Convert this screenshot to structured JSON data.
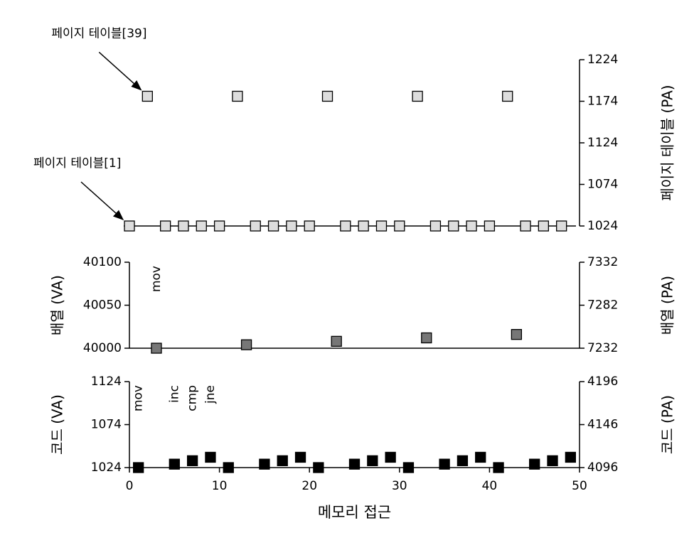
{
  "chart_data": [
    {
      "type": "scatter",
      "axis": "y2",
      "x": [
        0,
        2,
        4,
        6,
        8,
        10,
        12,
        14,
        16,
        18,
        20,
        22,
        24,
        26,
        28,
        30,
        32,
        34,
        36,
        38,
        40,
        42,
        44,
        46,
        48
      ],
      "values": [
        1024,
        1180,
        1024,
        1024,
        1024,
        1024,
        1180,
        1024,
        1024,
        1024,
        1024,
        1180,
        1024,
        1024,
        1024,
        1024,
        1180,
        1024,
        1024,
        1024,
        1024,
        1180,
        1024,
        1024,
        1024
      ],
      "color": "#dddddd",
      "y2lim": [
        1024,
        1224
      ],
      "y2ticks": [
        1024,
        1074,
        1124,
        1174,
        1224
      ],
      "y2label": "페이지 테이블 (PA)",
      "annotations": [
        {
          "text": "페이지 테이블[39]",
          "x": 2,
          "y": 1180
        },
        {
          "text": "페이지 테이블[1]",
          "x": 0,
          "y": 1024
        }
      ]
    },
    {
      "type": "scatter",
      "x": [
        3,
        13,
        23,
        33,
        43
      ],
      "values": [
        40000,
        40004,
        40008,
        40012,
        40016
      ],
      "color": "#777777",
      "ylim": [
        40000,
        40100
      ],
      "yticks": [
        40000,
        40050,
        40100
      ],
      "y2lim": [
        7232,
        7332
      ],
      "y2ticks": [
        7232,
        7282,
        7332
      ],
      "ylabel": "배열 (VA)",
      "y2label": "배열 (PA)",
      "annotations": [
        {
          "text": "mov",
          "x": 3
        }
      ]
    },
    {
      "type": "scatter",
      "x": [
        1,
        5,
        7,
        9,
        11,
        15,
        17,
        19,
        21,
        25,
        27,
        29,
        31,
        35,
        37,
        39,
        41,
        45,
        47,
        49
      ],
      "values": [
        1024,
        1028,
        1032,
        1036,
        1024,
        1028,
        1032,
        1036,
        1024,
        1028,
        1032,
        1036,
        1024,
        1028,
        1032,
        1036,
        1024,
        1028,
        1032,
        1036
      ],
      "color": "#000000",
      "ylim": [
        1024,
        1124
      ],
      "yticks": [
        1024,
        1074,
        1124
      ],
      "y2lim": [
        4096,
        4196
      ],
      "y2ticks": [
        4096,
        4146,
        4196
      ],
      "ylabel": "코드 (VA)",
      "y2label": "코드 (PA)",
      "xlim": [
        0,
        50
      ],
      "xticks": [
        0,
        10,
        20,
        30,
        40,
        50
      ],
      "xlabel": "메모리 접근",
      "annotations": [
        {
          "text": "mov",
          "x": 1
        },
        {
          "text": "inc",
          "x": 5
        },
        {
          "text": "cmp",
          "x": 7
        },
        {
          "text": "jne",
          "x": 9
        }
      ]
    }
  ]
}
